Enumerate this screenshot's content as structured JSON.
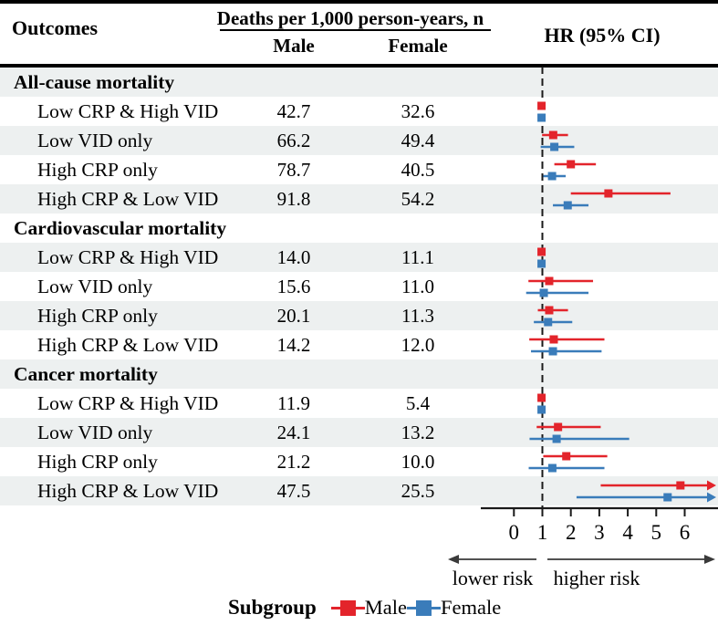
{
  "header": {
    "outcomes": "Outcomes",
    "deaths_header": "Deaths per 1,000 person-years, n",
    "male_col": "Male",
    "female_col": "Female",
    "hr_col": "HR (95% CI)"
  },
  "axis": {
    "lower_label": "lower risk",
    "higher_label": "higher risk"
  },
  "legend": {
    "title": "Subgroup",
    "male_label": "Male",
    "female_label": "Female"
  },
  "colors": {
    "male": "#e3242b",
    "female": "#3a7cba",
    "row_shade": "#edf0f0",
    "axis": "#1a1a1a",
    "arrow_gray": "#3a3a3a"
  },
  "chart_data": {
    "type": "forest",
    "title": "Mortality rates and hazard ratios by CRP / vitamin D subgroup and sex",
    "x_axis": {
      "ticks": [
        0,
        1,
        2,
        3,
        4,
        5,
        6
      ],
      "reference_line": 1,
      "range_shown": [
        0,
        7.2
      ],
      "direction_labels": {
        "left": "lower risk",
        "right": "higher risk"
      }
    },
    "series": [
      "Male",
      "Female"
    ],
    "rows": [
      {
        "section": true,
        "label": "All-cause mortality"
      },
      {
        "label": "Low CRP & High VID",
        "male_rate": "42.7",
        "female_rate": "32.6",
        "male": {
          "hr": 0.97,
          "lo": 0.94,
          "hi": 1.01
        },
        "female": {
          "hr": 0.97,
          "lo": 0.94,
          "hi": 1.01
        }
      },
      {
        "label": "Low VID only",
        "male_rate": "66.2",
        "female_rate": "49.4",
        "male": {
          "hr": 1.38,
          "lo": 0.99,
          "hi": 1.9
        },
        "female": {
          "hr": 1.42,
          "lo": 0.94,
          "hi": 2.12
        }
      },
      {
        "label": "High CRP only",
        "male_rate": "78.7",
        "female_rate": "40.5",
        "male": {
          "hr": 2.0,
          "lo": 1.42,
          "hi": 2.88
        },
        "female": {
          "hr": 1.34,
          "lo": 1.03,
          "hi": 1.82
        }
      },
      {
        "label": "High CRP & Low VID",
        "male_rate": "91.8",
        "female_rate": "54.2",
        "male": {
          "hr": 3.32,
          "lo": 2.0,
          "hi": 5.5
        },
        "female": {
          "hr": 1.89,
          "lo": 1.37,
          "hi": 2.62
        }
      },
      {
        "section": true,
        "label": "Cardiovascular mortality"
      },
      {
        "label": "Low CRP & High VID",
        "male_rate": "14.0",
        "female_rate": "11.1",
        "male": {
          "hr": 0.97,
          "lo": 0.94,
          "hi": 1.01
        },
        "female": {
          "hr": 0.97,
          "lo": 0.94,
          "hi": 1.01
        }
      },
      {
        "label": "Low VID only",
        "male_rate": "15.6",
        "female_rate": "11.0",
        "male": {
          "hr": 1.24,
          "lo": 0.51,
          "hi": 2.78
        },
        "female": {
          "hr": 1.05,
          "lo": 0.43,
          "hi": 2.62
        }
      },
      {
        "label": "High CRP only",
        "male_rate": "20.1",
        "female_rate": "11.3",
        "male": {
          "hr": 1.24,
          "lo": 0.84,
          "hi": 1.9
        },
        "female": {
          "hr": 1.2,
          "lo": 0.7,
          "hi": 2.05
        }
      },
      {
        "label": "High CRP & Low VID",
        "male_rate": "14.2",
        "female_rate": "12.0",
        "male": {
          "hr": 1.4,
          "lo": 0.54,
          "hi": 3.18
        },
        "female": {
          "hr": 1.37,
          "lo": 0.6,
          "hi": 3.08
        }
      },
      {
        "section": true,
        "label": "Cancer mortality"
      },
      {
        "label": "Low CRP & High VID",
        "male_rate": "11.9",
        "female_rate": "5.4",
        "male": {
          "hr": 0.97,
          "lo": 0.94,
          "hi": 1.01
        },
        "female": {
          "hr": 0.97,
          "lo": 0.94,
          "hi": 1.01
        }
      },
      {
        "label": "Low VID only",
        "male_rate": "24.1",
        "female_rate": "13.2",
        "male": {
          "hr": 1.55,
          "lo": 0.8,
          "hi": 3.05
        },
        "female": {
          "hr": 1.5,
          "lo": 0.55,
          "hi": 4.05
        }
      },
      {
        "label": "High CRP only",
        "male_rate": "21.2",
        "female_rate": "10.0",
        "male": {
          "hr": 1.84,
          "lo": 1.03,
          "hi": 3.28
        },
        "female": {
          "hr": 1.35,
          "lo": 0.52,
          "hi": 3.18
        }
      },
      {
        "label": "High CRP & Low VID",
        "male_rate": "47.5",
        "female_rate": "25.5",
        "male": {
          "hr": 5.85,
          "lo": 3.05,
          "hi": 7.3,
          "arrow": true
        },
        "female": {
          "hr": 5.4,
          "lo": 2.2,
          "hi": 7.3,
          "arrow": true
        }
      }
    ]
  }
}
